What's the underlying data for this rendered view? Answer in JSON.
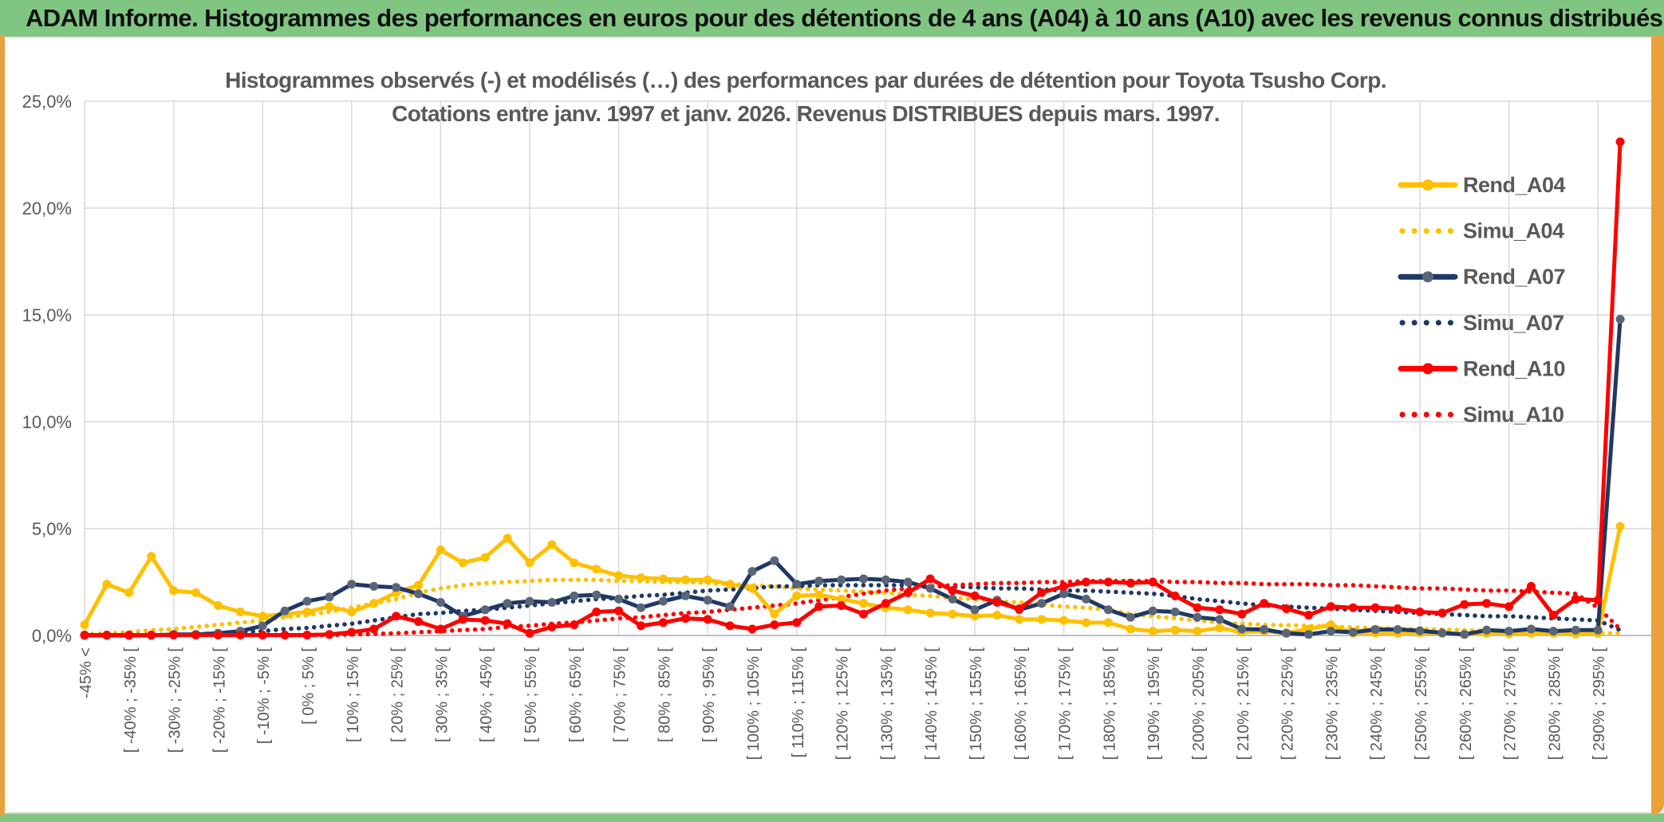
{
  "header": {
    "title": "ADAM Informe. Histogrammes des performances en euros pour des détentions de 4 ans (A04) à 10 ans (A10) avec les revenus connus distribués"
  },
  "chart": {
    "title_line1": "Histogrammes observés (-) et modélisés (…) des performances par durées de détention pour Toyota Tsusho Corp.",
    "title_line2": "Cotations entre janv. 1997 et janv. 2026. Revenus DISTRIBUES depuis mars. 1997."
  },
  "colors": {
    "header_green": "#80C682",
    "frame_gold": "#E9A23B",
    "series_gold": "#FFC000",
    "series_navy": "#1F3864",
    "series_red": "#FF0000",
    "grid": "#D9D9D9",
    "axis_line": "#BFBFBF",
    "text_gray": "#595959"
  },
  "chart_data": {
    "type": "line",
    "ylim": [
      0,
      25
    ],
    "grid": true,
    "legend_position": "right-inside",
    "ytick_labels": [
      "0,0%",
      "5,0%",
      "10,0%",
      "15,0%",
      "20,0%",
      "25,0%"
    ],
    "x_tick_labels": [
      "-45% <",
      "",
      "[ -40% ; -35% [",
      "",
      "[ -30% ; -25% [",
      "",
      "[ -20% ; -15% [",
      "",
      "[ -10% ; -5% [",
      "",
      "[ 0% ; 5% [",
      "",
      "[ 10% ; 15% [",
      "",
      "[ 20% ; 25% [",
      "",
      "[ 30% ; 35% [",
      "",
      "[ 40% ; 45% [",
      "",
      "[ 50% ; 55% [",
      "",
      "[ 60% ; 65% [",
      "",
      "[ 70% ; 75% [",
      "",
      "[ 80% ; 85% [",
      "",
      "[ 90% ; 95% [",
      "",
      "[ 100% ; 105% [",
      "",
      "[ 110% ; 115% [",
      "",
      "[ 120% ; 125% [",
      "",
      "[ 130% ; 135% [",
      "",
      "[ 140% ; 145% [",
      "",
      "[ 150% ; 155% [",
      "",
      "[ 160% ; 165% [",
      "",
      "[ 170% ; 175% [",
      "",
      "[ 180% ; 185% [",
      "",
      "[ 190% ; 195% [",
      "",
      "[ 200% ; 205% [",
      "",
      "[ 210% ; 215% [",
      "",
      "[ 220% ; 225% [",
      "",
      "[ 230% ; 235% [",
      "",
      "[ 240% ; 245% [",
      "",
      "[ 250% ; 255% [",
      "",
      "[ 260% ; 265% [",
      "",
      "[ 270% ; 275% [",
      "",
      "[ 280% ; 285% [",
      "",
      "[ 290% ; 295% [",
      ""
    ],
    "series": [
      {
        "name": "Rend_A04",
        "color": "#FFC000",
        "style": "solid",
        "values": [
          0.5,
          2.4,
          2.0,
          3.7,
          2.1,
          2.0,
          1.4,
          1.1,
          0.9,
          1.0,
          1.1,
          1.35,
          1.1,
          1.5,
          2.0,
          2.35,
          4.0,
          3.4,
          3.65,
          4.55,
          3.4,
          4.25,
          3.4,
          3.1,
          2.8,
          2.7,
          2.65,
          2.6,
          2.6,
          2.4,
          2.2,
          1.0,
          1.85,
          1.9,
          1.7,
          1.5,
          1.3,
          1.2,
          1.05,
          1.0,
          0.9,
          0.95,
          0.75,
          0.75,
          0.7,
          0.6,
          0.6,
          0.3,
          0.2,
          0.25,
          0.2,
          0.35,
          0.15,
          0.2,
          0.12,
          0.3,
          0.5,
          0.1,
          0.12,
          0.1,
          0.12,
          0.1,
          0.05,
          0.1,
          0.07,
          0.1,
          0.1,
          0.07,
          0.1,
          5.1
        ]
      },
      {
        "name": "Simu_A04",
        "color": "#FFC000",
        "style": "dotted",
        "values": [
          0.05,
          0.1,
          0.15,
          0.25,
          0.3,
          0.4,
          0.5,
          0.6,
          0.7,
          0.85,
          0.95,
          1.1,
          1.3,
          1.5,
          1.7,
          2.0,
          2.2,
          2.35,
          2.45,
          2.5,
          2.55,
          2.6,
          2.6,
          2.6,
          2.55,
          2.55,
          2.5,
          2.5,
          2.45,
          2.4,
          2.35,
          2.3,
          2.2,
          2.15,
          2.1,
          2.05,
          2.0,
          1.9,
          1.85,
          1.75,
          1.7,
          1.6,
          1.55,
          1.45,
          1.35,
          1.3,
          1.2,
          1.0,
          0.9,
          0.8,
          0.7,
          0.6,
          0.55,
          0.5,
          0.48,
          0.45,
          0.42,
          0.38,
          0.35,
          0.32,
          0.3,
          0.28,
          0.25,
          0.22,
          0.2,
          0.18,
          0.16,
          0.14,
          0.12,
          0.1
        ]
      },
      {
        "name": "Rend_A07",
        "color": "#1F3864",
        "style": "solid",
        "values": [
          0,
          0,
          0,
          0,
          0.05,
          0.05,
          0.1,
          0.2,
          0.45,
          1.15,
          1.6,
          1.8,
          2.4,
          2.3,
          2.25,
          1.95,
          1.55,
          0.9,
          1.2,
          1.5,
          1.6,
          1.55,
          1.85,
          1.9,
          1.7,
          1.3,
          1.6,
          1.85,
          1.65,
          1.35,
          3.0,
          3.5,
          2.4,
          2.55,
          2.6,
          2.65,
          2.6,
          2.5,
          2.2,
          1.7,
          1.2,
          1.65,
          1.2,
          1.5,
          1.95,
          1.7,
          1.2,
          0.85,
          1.15,
          1.1,
          0.85,
          0.75,
          0.3,
          0.28,
          0.1,
          0.05,
          0.2,
          0.15,
          0.28,
          0.28,
          0.22,
          0.12,
          0.05,
          0.25,
          0.2,
          0.3,
          0.2,
          0.25,
          0.25,
          14.8
        ]
      },
      {
        "name": "Simu_A07",
        "color": "#1F3864",
        "style": "dotted",
        "values": [
          0.02,
          0.02,
          0.02,
          0.03,
          0.03,
          0.05,
          0.1,
          0.15,
          0.2,
          0.3,
          0.35,
          0.45,
          0.55,
          0.7,
          0.85,
          1.0,
          1.05,
          1.15,
          1.2,
          1.3,
          1.4,
          1.5,
          1.6,
          1.7,
          1.75,
          1.85,
          1.9,
          2.0,
          2.1,
          2.15,
          2.2,
          2.3,
          2.3,
          2.35,
          2.35,
          2.35,
          2.35,
          2.35,
          2.3,
          2.3,
          2.25,
          2.2,
          2.2,
          2.15,
          2.1,
          2.1,
          2.05,
          2.0,
          1.95,
          1.85,
          1.7,
          1.6,
          1.5,
          1.4,
          1.35,
          1.3,
          1.25,
          1.2,
          1.15,
          1.1,
          1.05,
          1.0,
          0.95,
          0.9,
          0.9,
          0.85,
          0.8,
          0.75,
          0.7,
          0.25
        ]
      },
      {
        "name": "Rend_A10",
        "color": "#FF0000",
        "style": "solid",
        "values": [
          0.02,
          0.02,
          0.02,
          0.02,
          0.02,
          0.02,
          0.02,
          0.02,
          0.02,
          0.02,
          0.02,
          0.05,
          0.15,
          0.3,
          0.9,
          0.65,
          0.3,
          0.75,
          0.7,
          0.55,
          0.1,
          0.4,
          0.5,
          1.1,
          1.15,
          0.45,
          0.6,
          0.8,
          0.75,
          0.45,
          0.3,
          0.5,
          0.6,
          1.35,
          1.4,
          1.0,
          1.5,
          2.0,
          2.65,
          2.1,
          1.85,
          1.55,
          1.25,
          2.0,
          2.3,
          2.5,
          2.5,
          2.45,
          2.5,
          1.85,
          1.3,
          1.2,
          1.0,
          1.5,
          1.25,
          0.95,
          1.35,
          1.3,
          1.3,
          1.25,
          1.1,
          1.05,
          1.45,
          1.5,
          1.35,
          2.3,
          0.95,
          1.7,
          1.65,
          23.1
        ]
      },
      {
        "name": "Simu_A10",
        "color": "#FF0000",
        "style": "dotted",
        "values": [
          0.02,
          0.02,
          0.02,
          0.02,
          0.02,
          0.02,
          0.02,
          0.02,
          0.02,
          0.02,
          0.02,
          0.02,
          0.05,
          0.07,
          0.1,
          0.15,
          0.2,
          0.25,
          0.3,
          0.4,
          0.45,
          0.55,
          0.6,
          0.7,
          0.8,
          0.85,
          0.95,
          1.05,
          1.1,
          1.2,
          1.3,
          1.4,
          1.5,
          1.65,
          1.8,
          1.95,
          2.1,
          2.2,
          2.3,
          2.35,
          2.4,
          2.45,
          2.45,
          2.5,
          2.5,
          2.55,
          2.55,
          2.55,
          2.55,
          2.5,
          2.5,
          2.45,
          2.45,
          2.4,
          2.4,
          2.4,
          2.35,
          2.35,
          2.3,
          2.25,
          2.2,
          2.2,
          2.15,
          2.1,
          2.1,
          2.05,
          2.0,
          1.95,
          1.3,
          0.3
        ]
      }
    ]
  }
}
